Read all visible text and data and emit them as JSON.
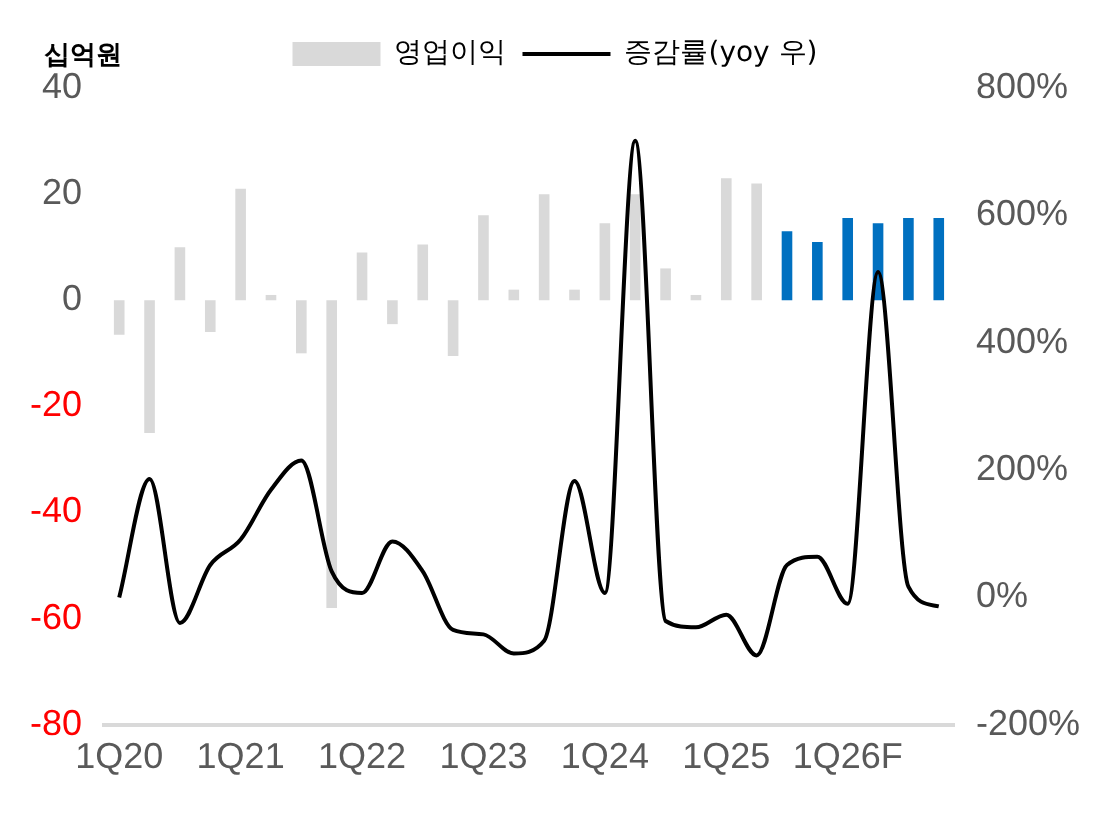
{
  "chart_data": {
    "type": "bar",
    "ylabel": "십억원",
    "categories": [
      "1Q20",
      null,
      null,
      null,
      "1Q21",
      null,
      null,
      null,
      "1Q22",
      null,
      null,
      null,
      "1Q23",
      null,
      null,
      null,
      "1Q24",
      null,
      null,
      null,
      "1Q25",
      null,
      null,
      null,
      "1Q26F",
      null,
      null,
      null
    ],
    "series": [
      {
        "name": "영업이익",
        "color": "#d9d9d9",
        "colors": [
          "#d9d9d9",
          "#d9d9d9",
          "#d9d9d9",
          "#d9d9d9",
          "#d9d9d9",
          "#d9d9d9",
          "#d9d9d9",
          "#d9d9d9",
          "#d9d9d9",
          "#d9d9d9",
          "#d9d9d9",
          "#d9d9d9",
          "#d9d9d9",
          "#d9d9d9",
          "#d9d9d9",
          "#d9d9d9",
          "#d9d9d9",
          "#d9d9d9",
          "#d9d9d9",
          "#d9d9d9",
          "#d9d9d9",
          "#d9d9d9",
          "#0070c0",
          "#0070c0",
          "#0070c0",
          "#0070c0",
          "#0070c0",
          "#0070c0"
        ],
        "values": [
          -6.5,
          -25,
          10,
          -6,
          21,
          1,
          -10,
          -58,
          9,
          -4.5,
          10.5,
          -10.5,
          16,
          2,
          20,
          2,
          14.5,
          20,
          6,
          1,
          23,
          22,
          13,
          11,
          15.5,
          14.5,
          15.5,
          15.5
        ]
      },
      {
        "name": "증감률(yoy 우)",
        "type": "line",
        "axis": "y2",
        "color": "#000000",
        "values": [
          0,
          186,
          -40,
          51,
          91,
          169,
          215,
          41,
          7,
          88,
          41,
          -51,
          -58,
          -88,
          -68,
          183,
          7,
          717,
          -37,
          -47,
          -27,
          -91,
          51,
          64,
          -10,
          511,
          17,
          -14
        ]
      }
    ],
    "ylim": [
      -80,
      40
    ],
    "yticks": [
      -80,
      -60,
      -40,
      -20,
      0,
      20,
      40
    ],
    "y2lim": [
      -200,
      800
    ],
    "y2ticks": [
      {
        "value": -200,
        "label": "-200%"
      },
      {
        "value": 0,
        "label": "0%"
      },
      {
        "value": 200,
        "label": "200%"
      },
      {
        "value": 400,
        "label": "400%"
      },
      {
        "value": 600,
        "label": "600%"
      },
      {
        "value": 800,
        "label": "800%"
      }
    ],
    "grid": false,
    "legend": "top",
    "marker": "none",
    "line_style": "solid"
  }
}
